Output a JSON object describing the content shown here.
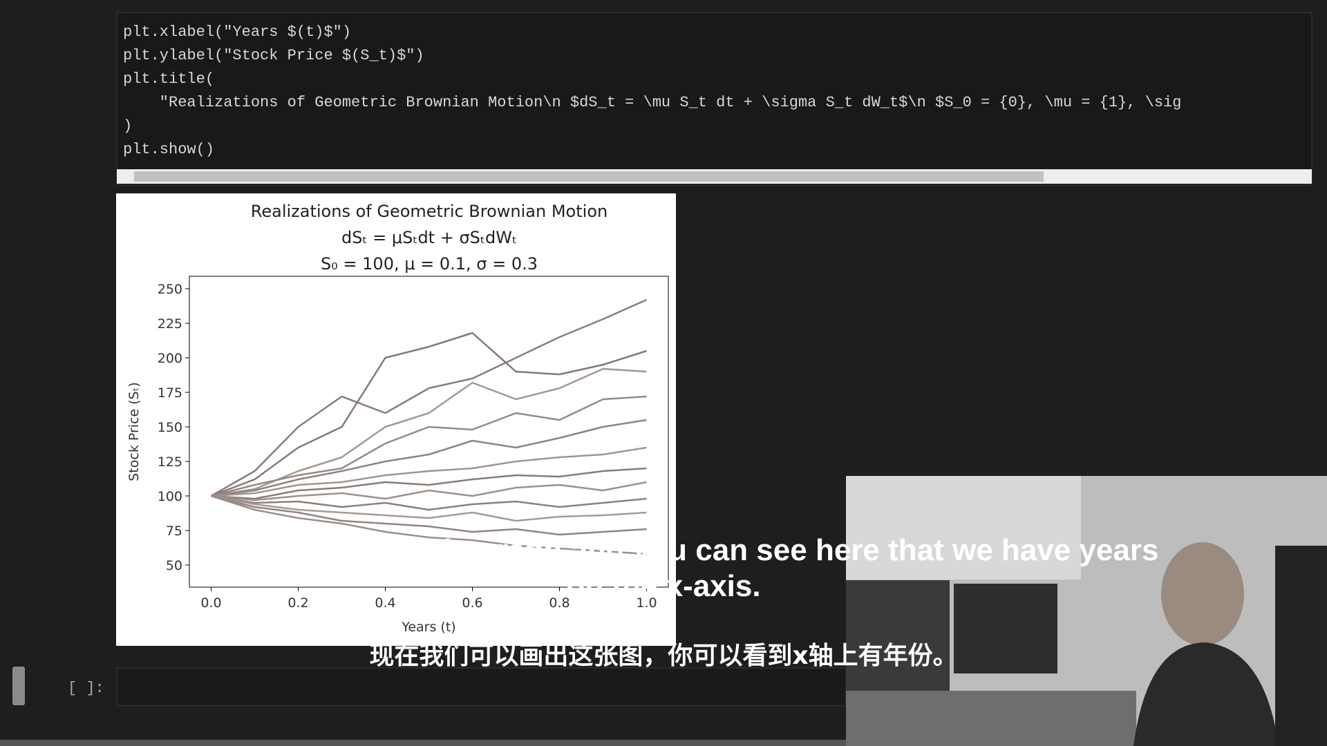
{
  "code": {
    "lines": [
      "plt.xlabel(\"Years $(t)$\")",
      "plt.ylabel(\"Stock Price $(S_t)$\")",
      "plt.title(",
      "    \"Realizations of Geometric Brownian Motion\\n $dS_t = \\mu S_t dt + \\sigma S_t dW_t$\\n $S_0 = {0}, \\mu = {1}, \\sig",
      ")",
      "plt.show()"
    ]
  },
  "chart_data": {
    "type": "line",
    "title": [
      "Realizations of Geometric Brownian Motion",
      "dSₜ = μSₜdt + σSₜdWₜ",
      "S₀ = 100, μ = 0.1, σ = 0.3"
    ],
    "x_label": "Years (t)",
    "y_label": "Stock Price (Sₜ)",
    "x": [
      0,
      0.1,
      0.2,
      0.3,
      0.4,
      0.5,
      0.6,
      0.7,
      0.8,
      0.9,
      1.0
    ],
    "series": [
      {
        "color": "#8a7d78",
        "values": [
          100,
          118,
          150,
          172,
          160,
          178,
          185,
          200,
          215,
          228,
          242
        ]
      },
      {
        "color": "#857874",
        "values": [
          100,
          112,
          135,
          150,
          200,
          208,
          218,
          190,
          188,
          195,
          205
        ]
      },
      {
        "color": "#a39893",
        "values": [
          100,
          105,
          118,
          128,
          150,
          160,
          182,
          170,
          178,
          192,
          190
        ]
      },
      {
        "color": "#958a85",
        "values": [
          100,
          108,
          115,
          120,
          138,
          150,
          148,
          160,
          155,
          170,
          172
        ]
      },
      {
        "color": "#8f837e",
        "values": [
          100,
          104,
          112,
          118,
          125,
          130,
          140,
          135,
          142,
          150,
          155
        ]
      },
      {
        "color": "#a09590",
        "values": [
          100,
          102,
          108,
          110,
          115,
          118,
          120,
          125,
          128,
          130,
          135
        ]
      },
      {
        "color": "#887c77",
        "values": [
          100,
          98,
          104,
          106,
          110,
          108,
          112,
          115,
          114,
          118,
          120
        ]
      },
      {
        "color": "#9c918c",
        "values": [
          100,
          97,
          100,
          102,
          98,
          104,
          100,
          106,
          108,
          104,
          110
        ]
      },
      {
        "color": "#8c807b",
        "values": [
          100,
          95,
          96,
          92,
          95,
          90,
          94,
          96,
          92,
          95,
          98
        ]
      },
      {
        "color": "#a59a95",
        "values": [
          100,
          94,
          90,
          88,
          86,
          84,
          88,
          82,
          85,
          86,
          88
        ]
      },
      {
        "color": "#918580",
        "values": [
          100,
          92,
          88,
          82,
          80,
          78,
          74,
          76,
          72,
          74,
          76
        ]
      },
      {
        "color": "#9a8f8a",
        "values": [
          100,
          90,
          84,
          80,
          74,
          70,
          68,
          64,
          62,
          60,
          58
        ]
      }
    ],
    "xlim": [
      -0.05,
      1.05
    ],
    "ylim": [
      34,
      259
    ],
    "xticks": [
      {
        "value": 0,
        "label": "0.0"
      },
      0.2,
      0.4,
      0.6,
      0.8,
      {
        "value": 1.0,
        "label": "1.0"
      }
    ],
    "yticks": [
      50,
      75,
      100,
      125,
      150,
      175,
      200,
      225,
      250
    ]
  },
  "prompt": "[ ]:",
  "subtitles": {
    "english": [
      "Now we can plot this graph and you can see here that we have years",
      "on the x-axis."
    ],
    "chinese": "现在我们可以画出这张图，你可以看到x轴上有年份。"
  }
}
